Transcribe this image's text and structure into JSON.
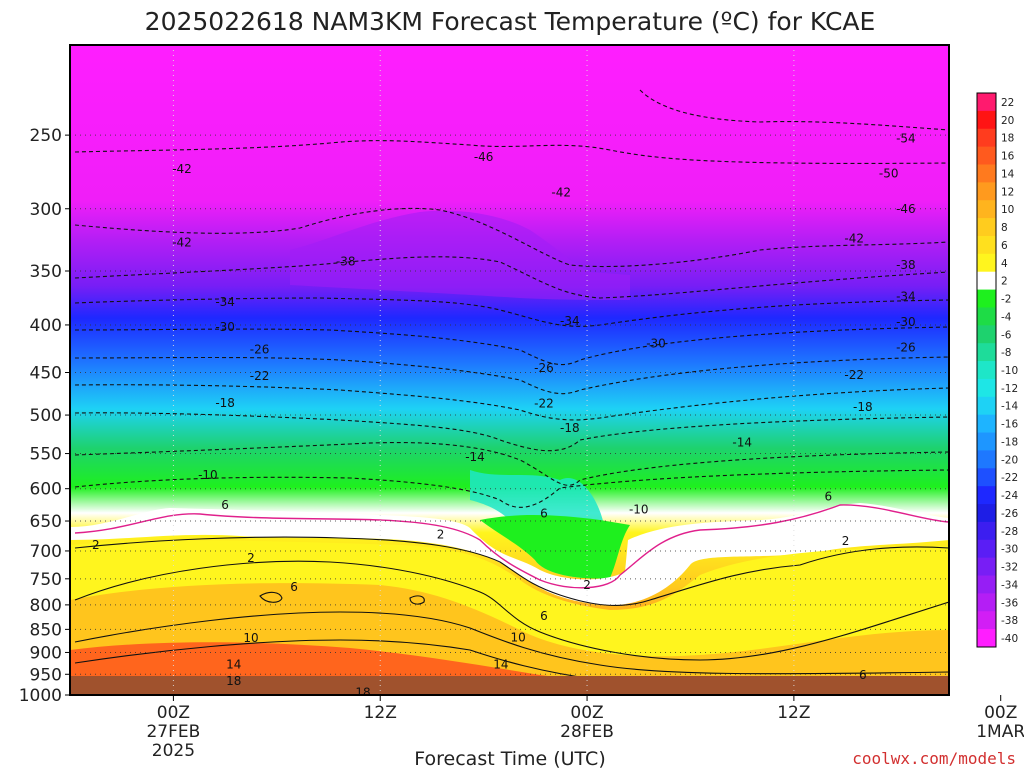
{
  "chart_data": {
    "type": "heatmap",
    "title": "2025022618 NAM3KM Forecast Temperature (ºC) for KCAE",
    "xlabel": "Forecast Time (UTC)",
    "ylabel": "",
    "y_axis": {
      "scale": "log",
      "inverted": true,
      "ylim": [
        200,
        1000
      ],
      "ticks": [
        250,
        300,
        350,
        400,
        450,
        500,
        550,
        600,
        650,
        700,
        750,
        800,
        850,
        900,
        950,
        1000
      ]
    },
    "x_axis": {
      "xlim": [
        -6,
        45
      ],
      "ticks": [
        {
          "hour": 0,
          "lines": [
            "00Z",
            "27FEB",
            "2025"
          ]
        },
        {
          "hour": 12,
          "lines": [
            "12Z"
          ]
        },
        {
          "hour": 24,
          "lines": [
            "00Z",
            "28FEB"
          ]
        },
        {
          "hour": 36,
          "lines": [
            "12Z"
          ]
        },
        {
          "hour": 48,
          "lines": [
            "00Z",
            "1MAR"
          ]
        }
      ]
    },
    "grid": true,
    "legend": "right",
    "colorbar": {
      "levels": [
        22,
        20,
        18,
        16,
        14,
        12,
        10,
        8,
        6,
        4,
        2,
        -2,
        -4,
        -6,
        -8,
        -10,
        -12,
        -14,
        -16,
        -18,
        -20,
        -22,
        -24,
        -26,
        -28,
        -30,
        -32,
        -34,
        -36,
        -38,
        -40
      ],
      "colors": [
        "#ff1a6e",
        "#ff1414",
        "#ff3c1e",
        "#ff5a1e",
        "#ff7a1e",
        "#ff9a1e",
        "#ffb41e",
        "#ffcc1e",
        "#ffe01e",
        "#fff51e",
        "#ffffff",
        "#1ef01e",
        "#1edc46",
        "#1ed26e",
        "#1edc9a",
        "#1ee6c8",
        "#1ee6e6",
        "#1ed2f5",
        "#1eb4ff",
        "#1e96ff",
        "#1e78ff",
        "#1e50ff",
        "#1e28ff",
        "#1e1ee6",
        "#3c1ef0",
        "#5a1ef5",
        "#781ef5",
        "#961ef5",
        "#b41ef5",
        "#d21ef5",
        "#ff1eff"
      ]
    },
    "contour_labels": [
      {
        "value": "-42",
        "hour": 0.5,
        "p": 272
      },
      {
        "value": "-46",
        "hour": 18,
        "p": 264
      },
      {
        "value": "-42",
        "hour": 22.5,
        "p": 288
      },
      {
        "value": "-54",
        "hour": 42.5,
        "p": 252
      },
      {
        "value": "-50",
        "hour": 41.5,
        "p": 275
      },
      {
        "value": "-46",
        "hour": 42.5,
        "p": 300
      },
      {
        "value": "-42",
        "hour": 0.5,
        "p": 326
      },
      {
        "value": "-42",
        "hour": 39.5,
        "p": 323
      },
      {
        "value": "-38",
        "hour": 10,
        "p": 342
      },
      {
        "value": "-38",
        "hour": 42.5,
        "p": 345
      },
      {
        "value": "-34",
        "hour": 3,
        "p": 378
      },
      {
        "value": "-34",
        "hour": 42.5,
        "p": 373
      },
      {
        "value": "-34",
        "hour": 23,
        "p": 396
      },
      {
        "value": "-30",
        "hour": 3,
        "p": 402
      },
      {
        "value": "-30",
        "hour": 42.5,
        "p": 397
      },
      {
        "value": "-30",
        "hour": 28,
        "p": 419
      },
      {
        "value": "-26",
        "hour": 5,
        "p": 425
      },
      {
        "value": "-26",
        "hour": 42.5,
        "p": 423
      },
      {
        "value": "-26",
        "hour": 21.5,
        "p": 445
      },
      {
        "value": "-22",
        "hour": 5,
        "p": 454
      },
      {
        "value": "-22",
        "hour": 39.5,
        "p": 453
      },
      {
        "value": "-22",
        "hour": 21.5,
        "p": 486
      },
      {
        "value": "-18",
        "hour": 3,
        "p": 485
      },
      {
        "value": "-18",
        "hour": 40,
        "p": 490
      },
      {
        "value": "-18",
        "hour": 23,
        "p": 516
      },
      {
        "value": "-14",
        "hour": 17.5,
        "p": 555
      },
      {
        "value": "-14",
        "hour": 33,
        "p": 535
      },
      {
        "value": "-10",
        "hour": 2,
        "p": 580
      },
      {
        "value": "-10",
        "hour": 27,
        "p": 632
      },
      {
        "value": "6",
        "hour": 3,
        "p": 625
      },
      {
        "value": "6",
        "hour": 21.5,
        "p": 638
      },
      {
        "value": "6",
        "hour": 38,
        "p": 612
      },
      {
        "value": "2",
        "hour": -4.5,
        "p": 690
      },
      {
        "value": "2",
        "hour": 15.5,
        "p": 672
      },
      {
        "value": "2",
        "hour": 4.5,
        "p": 712
      },
      {
        "value": "2",
        "hour": 39,
        "p": 683
      },
      {
        "value": "2",
        "hour": 24,
        "p": 762
      },
      {
        "value": "6",
        "hour": 7,
        "p": 765
      },
      {
        "value": "6",
        "hour": 21.5,
        "p": 822
      },
      {
        "value": "6",
        "hour": 40,
        "p": 952
      },
      {
        "value": "10",
        "hour": 4.5,
        "p": 868
      },
      {
        "value": "10",
        "hour": 20,
        "p": 867
      },
      {
        "value": "14",
        "hour": 3.5,
        "p": 927
      },
      {
        "value": "14",
        "hour": 19,
        "p": 927
      },
      {
        "value": "18",
        "hour": 3.5,
        "p": 966
      },
      {
        "value": "18",
        "hour": 11,
        "p": 994
      }
    ]
  },
  "credit": "coolwx.com/models"
}
